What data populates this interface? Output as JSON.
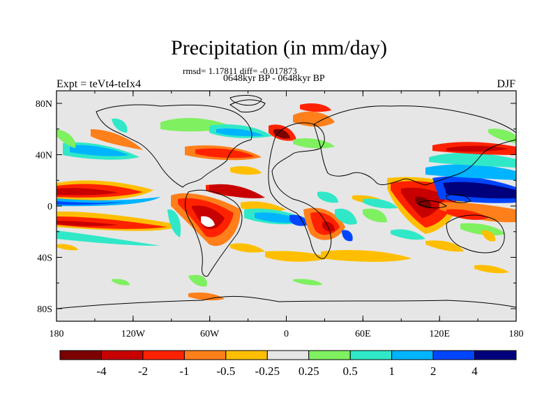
{
  "title": "Precipitation (in mm/day)",
  "stats": "rmsd= 1.17811 diff= -0.017873",
  "period": "0648kyr BP - 0648kyr BP",
  "left_string": "Expt = teVt4-teIx4",
  "right_string": "DJF",
  "x_ticks": [
    "180",
    "120W",
    "60W",
    "0",
    "60E",
    "120E",
    "180"
  ],
  "y_ticks": [
    "80N",
    "40N",
    "0",
    "40S",
    "80S"
  ],
  "colorbar": {
    "colors": [
      "#7d0000",
      "#c80000",
      "#ff2200",
      "#ff7f1a",
      "#ffbf00",
      "#e6e6e6",
      "#7ff060",
      "#30e8c8",
      "#00b4ff",
      "#0046ff",
      "#00007d"
    ],
    "labels": [
      "-4",
      "-2",
      "-1",
      "-0.5",
      "-0.25",
      "0.25",
      "0.5",
      "1",
      "2",
      "4"
    ]
  }
}
